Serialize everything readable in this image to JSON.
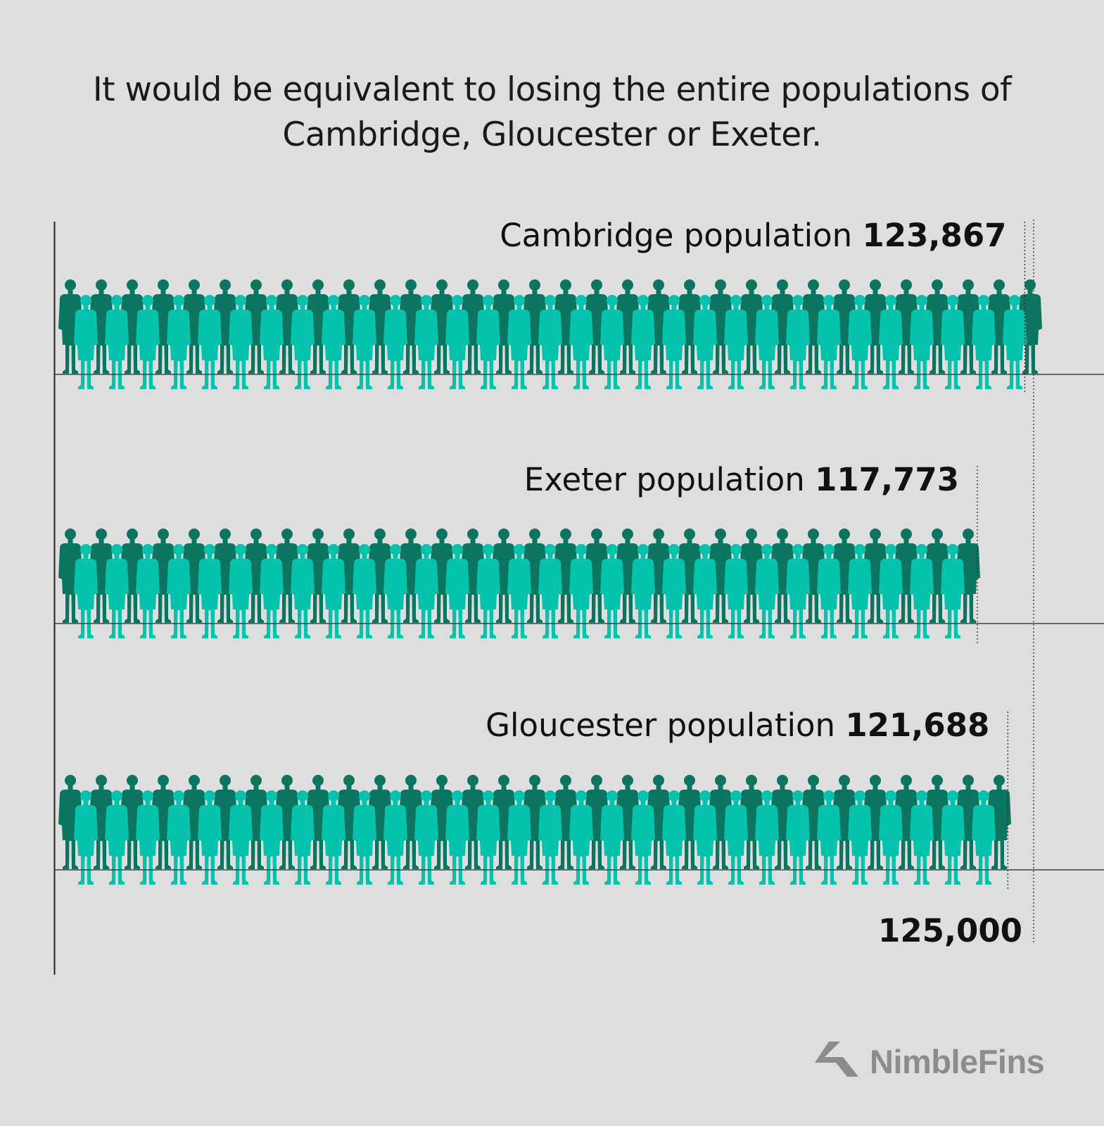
{
  "headline": {
    "line1": "It would be equivalent to losing the entire populations of",
    "line2": "Cambridge, Gloucester or Exeter."
  },
  "chart_data": {
    "type": "bar",
    "orientation": "horizontal",
    "style": "pictograph",
    "title": "",
    "xlabel": "",
    "ylabel": "",
    "xlim": [
      0,
      125000
    ],
    "axis_max_label": "125,000",
    "categories": [
      "Cambridge",
      "Exeter",
      "Gloucester"
    ],
    "series": [
      {
        "values": [
          123867,
          117773,
          121688
        ],
        "labels": [
          {
            "text": "Cambridge population",
            "value": "123,867"
          },
          {
            "text": "Exeter population",
            "value": "117,773"
          },
          {
            "text": "Gloucester population",
            "value": "121,688"
          }
        ]
      }
    ],
    "colors": {
      "back_row": "#0b7560",
      "front_row": "#05c2ad",
      "axis": "#222222",
      "text": "#111111"
    }
  },
  "brand": {
    "icon": "nimblefins-chevron-logo",
    "name": "NimbleFins"
  }
}
